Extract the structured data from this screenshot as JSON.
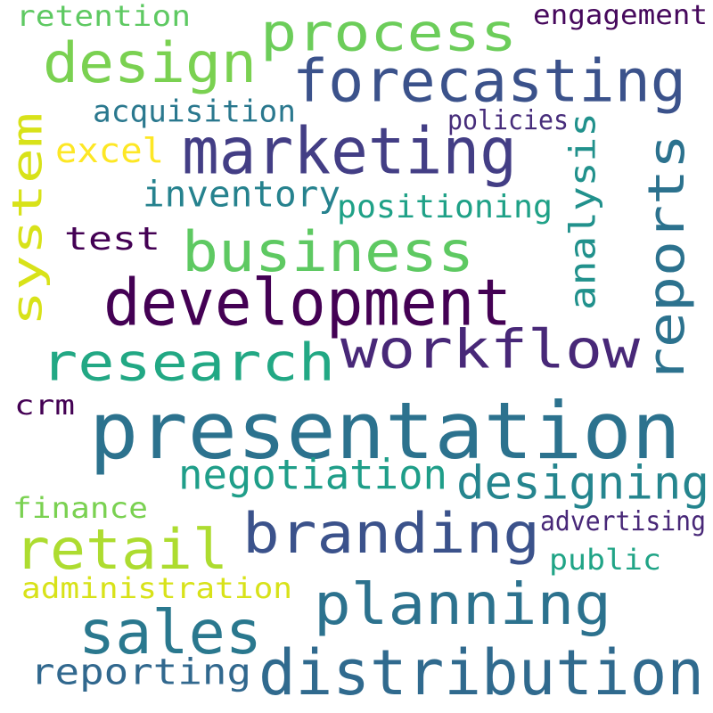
{
  "words": [
    {
      "text": "retention",
      "color": "#5ec962"
    },
    {
      "text": "process",
      "color": "#6ccd5a"
    },
    {
      "text": "engagement",
      "color": "#46085c"
    },
    {
      "text": "design",
      "color": "#7ad151"
    },
    {
      "text": "forecasting",
      "color": "#3b528b"
    },
    {
      "text": "acquisition",
      "color": "#2a788e"
    },
    {
      "text": "policies",
      "color": "#472d7b"
    },
    {
      "text": "system",
      "color": "#d8e219"
    },
    {
      "text": "marketing",
      "color": "#433e85"
    },
    {
      "text": "excel",
      "color": "#fde725"
    },
    {
      "text": "analysis",
      "color": "#21918c"
    },
    {
      "text": "reports",
      "color": "#2c728e"
    },
    {
      "text": "inventory",
      "color": "#26828e"
    },
    {
      "text": "positioning",
      "color": "#1fa187"
    },
    {
      "text": "test",
      "color": "#440154"
    },
    {
      "text": "business",
      "color": "#5ec962"
    },
    {
      "text": "development",
      "color": "#440154"
    },
    {
      "text": "workflow",
      "color": "#482878"
    },
    {
      "text": "research",
      "color": "#22a884"
    },
    {
      "text": "crm",
      "color": "#440154"
    },
    {
      "text": "presentation",
      "color": "#2c728e"
    },
    {
      "text": "negotiation",
      "color": "#1f9e89"
    },
    {
      "text": "designing",
      "color": "#25858e"
    },
    {
      "text": "finance",
      "color": "#7ad151"
    },
    {
      "text": "branding",
      "color": "#3b528b"
    },
    {
      "text": "advertising",
      "color": "#482878"
    },
    {
      "text": "retail",
      "color": "#addc30"
    },
    {
      "text": "public",
      "color": "#20a486"
    },
    {
      "text": "administration",
      "color": "#d8e219"
    },
    {
      "text": "planning",
      "color": "#2c728e"
    },
    {
      "text": "sales",
      "color": "#2a788e"
    },
    {
      "text": "reporting",
      "color": "#31688e"
    },
    {
      "text": "distribution",
      "color": "#306a8e"
    }
  ]
}
